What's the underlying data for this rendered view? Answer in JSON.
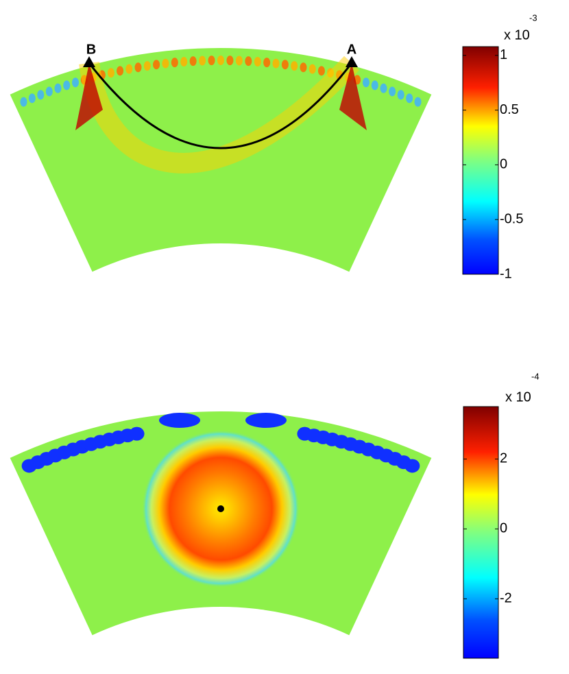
{
  "chart_data": [
    {
      "type": "field",
      "labels": [
        "B",
        "A"
      ],
      "colorbar": {
        "label": "x 10",
        "exponent": "-3",
        "ylim": [
          -1,
          1.08
        ],
        "yticks": [
          1,
          0.5,
          0,
          -0.5,
          -1
        ]
      }
    },
    {
      "type": "field",
      "colorbar": {
        "label": "x 10",
        "exponent": "-4",
        "ylim": [
          -3.7,
          3.5
        ],
        "yticks": [
          2,
          0,
          -2
        ]
      }
    }
  ]
}
